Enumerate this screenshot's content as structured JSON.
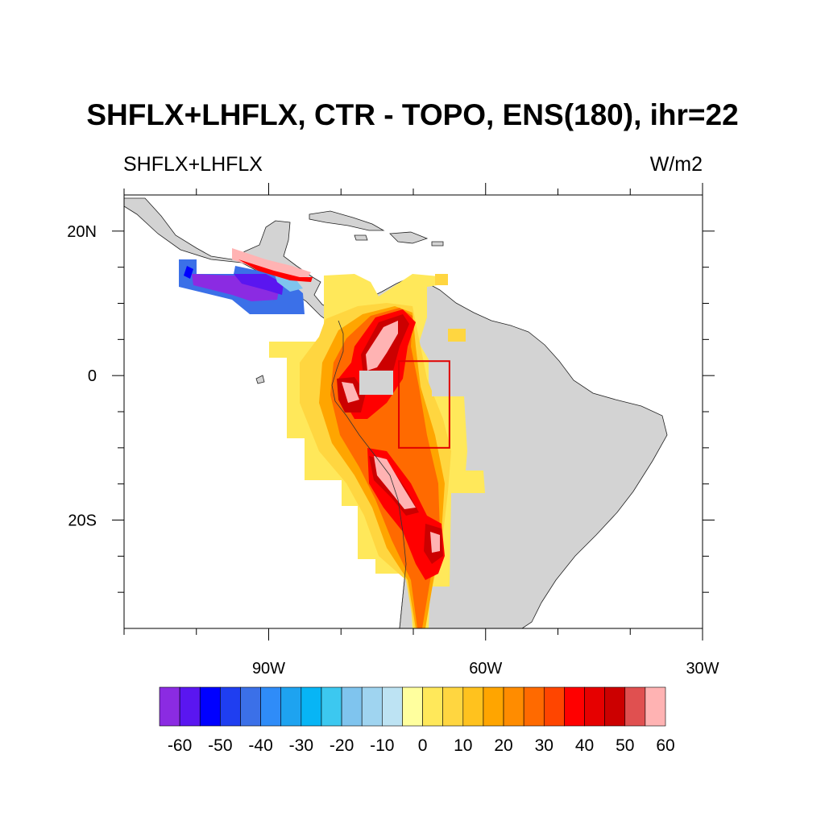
{
  "figure": {
    "title": "SHFLX+LHFLX, CTR - TOPO, ENS(180), ihr=22",
    "left_subtitle": "SHFLX+LHFLX",
    "right_subtitle": "W/m2"
  },
  "map": {
    "projection": "cylindrical-equidistant",
    "lon_range": [
      -110,
      -30
    ],
    "lat_range": [
      -35,
      25
    ],
    "land_color": "#d3d3d3",
    "lon_ticks": [
      {
        "value": -90,
        "label": "90W"
      },
      {
        "value": -60,
        "label": "60W"
      },
      {
        "value": -30,
        "label": "30W"
      }
    ],
    "lat_ticks": [
      {
        "value": 20,
        "label": "20N"
      },
      {
        "value": 0,
        "label": "0"
      },
      {
        "value": -20,
        "label": "20S"
      }
    ],
    "region_box": {
      "lon": [
        -72,
        -65
      ],
      "lat": [
        -10,
        2
      ],
      "color": "#e00000"
    }
  },
  "colorbar": {
    "levels": [
      -60,
      -55,
      -50,
      -45,
      -40,
      -35,
      -30,
      -25,
      -20,
      -15,
      -10,
      -5,
      0,
      5,
      10,
      15,
      20,
      25,
      30,
      35,
      40,
      45,
      50,
      55,
      60
    ],
    "colors": [
      "#8b2be2",
      "#5a16f0",
      "#0000ff",
      "#1f3ef0",
      "#3b70e8",
      "#2f8cf8",
      "#1ea3f0",
      "#07b5f5",
      "#3cc8f0",
      "#7fc4ee",
      "#9fd4f0",
      "#bde3f3",
      "#ffff9e",
      "#ffe85a",
      "#ffd640",
      "#ffc21e",
      "#ffa500",
      "#ff8c00",
      "#ff6a00",
      "#ff4500",
      "#ff0000",
      "#e60000",
      "#cc0000",
      "#e05050",
      "#ffb3b3"
    ],
    "labels": [
      {
        "value": -60,
        "label": "-60"
      },
      {
        "value": -50,
        "label": "-50"
      },
      {
        "value": -40,
        "label": "-40"
      },
      {
        "value": -30,
        "label": "-30"
      },
      {
        "value": -20,
        "label": "-20"
      },
      {
        "value": -10,
        "label": "-10"
      },
      {
        "value": 0,
        "label": "0"
      },
      {
        "value": 10,
        "label": "10"
      },
      {
        "value": 20,
        "label": "20"
      },
      {
        "value": 30,
        "label": "30"
      },
      {
        "value": 40,
        "label": "40"
      },
      {
        "value": 50,
        "label": "50"
      },
      {
        "value": 60,
        "label": "60"
      }
    ]
  }
}
